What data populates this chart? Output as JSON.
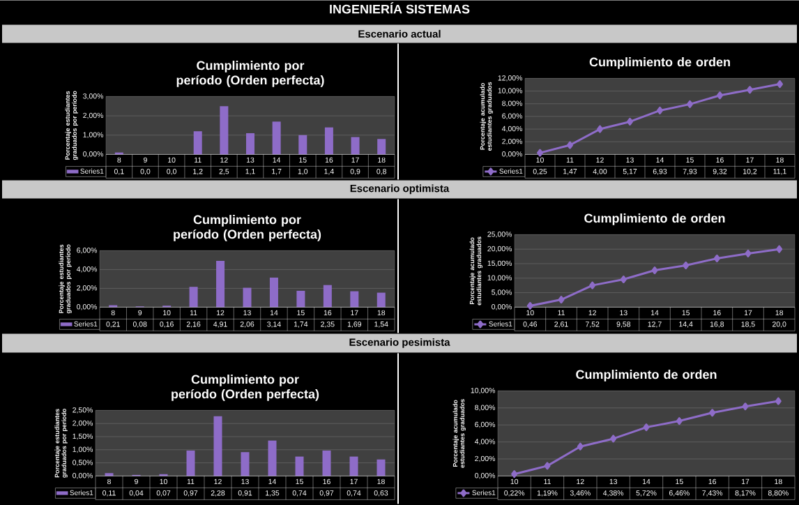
{
  "chart_data": [
    {
      "type": "bar",
      "title": "Cumplimiento por período (Orden perfecta)",
      "ylabel": "Porcentaje estudiantes graduados por período",
      "annotations": [
        "INGENIERÍA SISTEMAS",
        "Escenario actual"
      ],
      "categories": [
        "8",
        "9",
        "10",
        "11",
        "12",
        "13",
        "14",
        "15",
        "16",
        "17",
        "18"
      ],
      "series": [
        {
          "name": "Series1",
          "color": "#8e6cc8",
          "values": [
            0.1,
            0.0,
            0.0,
            1.2,
            2.5,
            1.1,
            1.7,
            1.0,
            1.4,
            0.9,
            0.8
          ],
          "value_labels": [
            "0,1",
            "0,0",
            "0,0",
            "1,2",
            "2,5",
            "1,1",
            "1,7",
            "1,0",
            "1,4",
            "0,9",
            "0,8"
          ]
        }
      ],
      "ylim": [
        0,
        3
      ],
      "yticks": [
        {
          "value": 0,
          "label": "0,00%"
        },
        {
          "value": 1,
          "label": "1,00%"
        },
        {
          "value": 2,
          "label": "2,00%"
        },
        {
          "value": 3,
          "label": "3,00%"
        }
      ],
      "grid": "y",
      "legend": "bottom"
    },
    {
      "type": "line",
      "title": "Cumplimiento de orden",
      "ylabel": "Porcentaje acumulado estudiantes graduados",
      "categories": [
        "10",
        "11",
        "12",
        "13",
        "14",
        "15",
        "16",
        "17",
        "18"
      ],
      "series": [
        {
          "name": "Series1",
          "color": "#8e6cc8",
          "values": [
            0.25,
            1.47,
            4.0,
            5.17,
            6.93,
            7.93,
            9.32,
            10.2,
            11.1
          ],
          "value_labels": [
            "0,25",
            "1,47",
            "4,00",
            "5,17",
            "6,93",
            "7,93",
            "9,32",
            "10,2",
            "11,1"
          ]
        }
      ],
      "ylim": [
        0,
        12
      ],
      "yticks": [
        {
          "value": 0,
          "label": "0,00%"
        },
        {
          "value": 2,
          "label": "2,00%"
        },
        {
          "value": 4,
          "label": "4,00%"
        },
        {
          "value": 6,
          "label": "6,00%"
        },
        {
          "value": 8,
          "label": "8,00%"
        },
        {
          "value": 10,
          "label": "10,00%"
        },
        {
          "value": 12,
          "label": "12,00%"
        }
      ],
      "grid": "y",
      "legend": "bottom",
      "marker": "diamond"
    },
    {
      "type": "bar",
      "title": "Cumplimiento por período (Orden perfecta)",
      "ylabel": "Porcentaje estudiantes graduados por período",
      "annotations": [
        "Escenario optimista"
      ],
      "categories": [
        "8",
        "9",
        "10",
        "11",
        "12",
        "13",
        "14",
        "15",
        "16",
        "17",
        "18"
      ],
      "series": [
        {
          "name": "Series1",
          "color": "#8e6cc8",
          "values": [
            0.21,
            0.08,
            0.16,
            2.16,
            4.91,
            2.06,
            3.14,
            1.74,
            2.35,
            1.69,
            1.54
          ],
          "value_labels": [
            "0,21",
            "0,08",
            "0,16",
            "2,16",
            "4,91",
            "2,06",
            "3,14",
            "1,74",
            "2,35",
            "1,69",
            "1,54"
          ]
        }
      ],
      "ylim": [
        0,
        6
      ],
      "yticks": [
        {
          "value": 0,
          "label": "0,00%"
        },
        {
          "value": 2,
          "label": "2,00%"
        },
        {
          "value": 4,
          "label": "4,00%"
        },
        {
          "value": 6,
          "label": "6,00%"
        }
      ],
      "grid": "y",
      "legend": "bottom"
    },
    {
      "type": "line",
      "title": "Cumplimiento de orden",
      "ylabel": "Porcentaje acumulado estudiantes graduados",
      "categories": [
        "10",
        "11",
        "12",
        "13",
        "14",
        "15",
        "16",
        "17",
        "18"
      ],
      "series": [
        {
          "name": "Series1",
          "color": "#8e6cc8",
          "values": [
            0.46,
            2.61,
            7.52,
            9.58,
            12.7,
            14.4,
            16.8,
            18.5,
            20.0
          ],
          "value_labels": [
            "0,46",
            "2,61",
            "7,52",
            "9,58",
            "12,7",
            "14,4",
            "16,8",
            "18,5",
            "20,0"
          ]
        }
      ],
      "ylim": [
        0,
        25
      ],
      "yticks": [
        {
          "value": 0,
          "label": "0,00%"
        },
        {
          "value": 5,
          "label": "5,00%"
        },
        {
          "value": 10,
          "label": "10,00%"
        },
        {
          "value": 15,
          "label": "15,00%"
        },
        {
          "value": 20,
          "label": "20,00%"
        },
        {
          "value": 25,
          "label": "25,00%"
        }
      ],
      "grid": "y",
      "legend": "bottom",
      "marker": "diamond"
    },
    {
      "type": "bar",
      "title": "Cumplimiento por período (Orden perfecta)",
      "ylabel": "Porcentaje estudiantes graduados por período",
      "annotations": [
        "Escenario pesimista"
      ],
      "categories": [
        "8",
        "9",
        "10",
        "11",
        "12",
        "13",
        "14",
        "15",
        "16",
        "17",
        "18"
      ],
      "series": [
        {
          "name": "Series1",
          "color": "#8e6cc8",
          "values": [
            0.11,
            0.04,
            0.07,
            0.97,
            2.28,
            0.91,
            1.35,
            0.74,
            0.97,
            0.74,
            0.63
          ],
          "value_labels": [
            "0,11",
            "0,04",
            "0,07",
            "0,97",
            "2,28",
            "0,91",
            "1,35",
            "0,74",
            "0,97",
            "0,74",
            "0,63"
          ]
        }
      ],
      "ylim": [
        0,
        2.5
      ],
      "yticks": [
        {
          "value": 0,
          "label": "0,00%"
        },
        {
          "value": 0.5,
          "label": "0,50%"
        },
        {
          "value": 1,
          "label": "1,00%"
        },
        {
          "value": 1.5,
          "label": "1,50%"
        },
        {
          "value": 2,
          "label": "2,00%"
        },
        {
          "value": 2.5,
          "label": "2,50%"
        }
      ],
      "grid": "y",
      "legend": "bottom"
    },
    {
      "type": "line",
      "title": "Cumplimiento de orden",
      "ylabel": "Porcentaje acumulado estudiantes graduados",
      "categories": [
        "10",
        "11",
        "12",
        "13",
        "14",
        "15",
        "16",
        "17",
        "18"
      ],
      "series": [
        {
          "name": "Series1",
          "color": "#8e6cc8",
          "values": [
            0.22,
            1.19,
            3.46,
            4.38,
            5.72,
            6.46,
            7.43,
            8.17,
            8.8
          ],
          "value_labels": [
            "0,22%",
            "1,19%",
            "3,46%",
            "4,38%",
            "5,72%",
            "6,46%",
            "7,43%",
            "8,17%",
            "8,80%"
          ]
        }
      ],
      "ylim": [
        0,
        10
      ],
      "yticks": [
        {
          "value": 0,
          "label": "0,00%"
        },
        {
          "value": 2,
          "label": "2,00%"
        },
        {
          "value": 4,
          "label": "4,00%"
        },
        {
          "value": 6,
          "label": "6,00%"
        },
        {
          "value": 8,
          "label": "8,00%"
        },
        {
          "value": 10,
          "label": "10,00%"
        }
      ],
      "grid": "y",
      "legend": "bottom",
      "marker": "diamond"
    }
  ]
}
